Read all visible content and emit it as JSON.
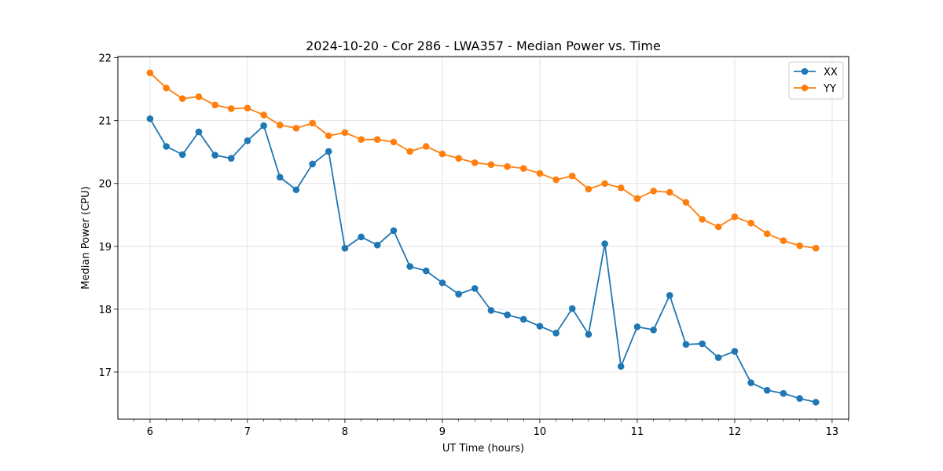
{
  "chart_data": {
    "type": "line",
    "title": "2024-10-20 - Cor 286 - LWA357 - Median Power vs. Time",
    "xlabel": "UT Time (hours)",
    "ylabel": "Median Power (CPU)",
    "xlim": [
      5.67,
      13.17
    ],
    "ylim": [
      16.25,
      22.02
    ],
    "xticks": [
      6,
      7,
      8,
      9,
      10,
      11,
      12,
      13
    ],
    "yticks": [
      17,
      18,
      19,
      20,
      21,
      22
    ],
    "grid": true,
    "legend_position": "top-right",
    "x": [
      6.0,
      6.167,
      6.333,
      6.5,
      6.667,
      6.833,
      7.0,
      7.167,
      7.333,
      7.5,
      7.667,
      7.833,
      8.0,
      8.167,
      8.333,
      8.5,
      8.667,
      8.833,
      9.0,
      9.167,
      9.333,
      9.5,
      9.667,
      9.833,
      10.0,
      10.167,
      10.333,
      10.5,
      10.667,
      10.833,
      11.0,
      11.167,
      11.333,
      11.5,
      11.667,
      11.833,
      12.0,
      12.167,
      12.333,
      12.5,
      12.667,
      12.833
    ],
    "series": [
      {
        "name": "XX",
        "color": "#1f77b4",
        "values": [
          21.03,
          20.59,
          20.46,
          20.82,
          20.45,
          20.4,
          20.68,
          20.92,
          20.1,
          19.9,
          20.31,
          20.51,
          18.97,
          19.15,
          19.02,
          19.25,
          18.68,
          18.61,
          18.42,
          18.24,
          18.33,
          17.98,
          17.91,
          17.84,
          17.73,
          17.62,
          18.01,
          17.6,
          19.04,
          17.09,
          17.72,
          17.67,
          18.22,
          17.44,
          17.45,
          17.23,
          17.33,
          16.83,
          16.71,
          16.66,
          16.58,
          16.52
        ]
      },
      {
        "name": "YY",
        "color": "#ff7f0e",
        "values": [
          21.76,
          21.52,
          21.35,
          21.38,
          21.25,
          21.19,
          21.2,
          21.09,
          20.93,
          20.88,
          20.96,
          20.76,
          20.81,
          20.7,
          20.7,
          20.66,
          20.51,
          20.59,
          20.47,
          20.4,
          20.33,
          20.3,
          20.27,
          20.24,
          20.16,
          20.06,
          20.12,
          19.91,
          20.0,
          19.93,
          19.76,
          19.88,
          19.86,
          19.7,
          19.43,
          19.31,
          19.47,
          19.37,
          19.2,
          19.09,
          19.01,
          18.97
        ]
      }
    ]
  }
}
